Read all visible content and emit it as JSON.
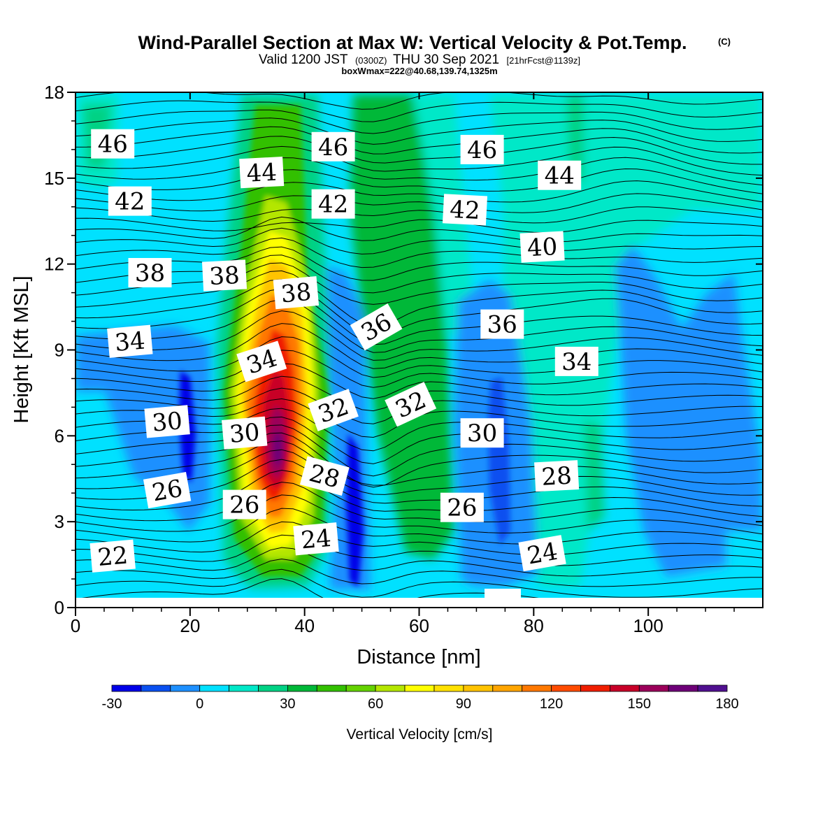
{
  "header": {
    "title": "Wind-Parallel Section at Max W: Vertical Velocity & Pot.Temp.",
    "copyright": "(C)",
    "valid_prefix": "Valid 1200 JST",
    "valid_utc": "(0300Z)",
    "valid_date": "THU 30 Sep 2021",
    "forecast_info": "[21hrFcst@1139z]",
    "box_info": "boxWmax=222@40.68,139.74,1325m"
  },
  "chart_data": {
    "type": "heatmap",
    "xlabel": "Distance [nm]",
    "ylabel": "Height [Kft MSL]",
    "xlim": [
      0,
      120
    ],
    "ylim": [
      0,
      18
    ],
    "x_ticks": [
      0,
      20,
      40,
      60,
      80,
      100
    ],
    "y_ticks": [
      0,
      3,
      6,
      9,
      12,
      15,
      18
    ],
    "colorbar": {
      "title": "Vertical Velocity [cm/s]",
      "min": -30,
      "max": 180,
      "step": 10,
      "tick_values": [
        -30,
        0,
        30,
        60,
        90,
        120,
        150,
        180
      ],
      "colors": [
        "#0000e8",
        "#0a50f0",
        "#1e90ff",
        "#00e1ff",
        "#00e8c8",
        "#00d284",
        "#00b838",
        "#32c000",
        "#64d200",
        "#b4e600",
        "#ffff00",
        "#ffe100",
        "#ffc300",
        "#ffa500",
        "#ff7800",
        "#ff4b00",
        "#f01e00",
        "#c80028",
        "#9b005a",
        "#6e0078",
        "#501090"
      ]
    },
    "features": [
      {
        "name": "updraft core",
        "x_center": 36,
        "peak_cm_s": 175,
        "height_kft": [
          1,
          13.5
        ]
      },
      {
        "name": "green updraft band",
        "x_center": 56,
        "peak_cm_s": 40,
        "height_kft": [
          1.5,
          18
        ]
      },
      {
        "name": "downdraft",
        "x_center": 49,
        "min_cm_s": -25,
        "height_kft": [
          0.5,
          11
        ]
      },
      {
        "name": "downdraft",
        "x_center": 74,
        "min_cm_s": -20,
        "height_kft": [
          1.5,
          11
        ]
      },
      {
        "name": "downdraft",
        "x_center": 19,
        "min_cm_s": -25,
        "height_kft": [
          2.5,
          8
        ]
      }
    ],
    "contours": {
      "variable": "Potential Temperature",
      "levels": [
        22,
        24,
        26,
        28,
        30,
        32,
        34,
        36,
        38,
        40,
        42,
        44,
        46
      ]
    },
    "contour_labels": [
      {
        "text": "46",
        "x": 6.5,
        "y": 16.2,
        "rot": 0
      },
      {
        "text": "46",
        "x": 45,
        "y": 16.1,
        "rot": 0
      },
      {
        "text": "46",
        "x": 71,
        "y": 16.0,
        "rot": 0
      },
      {
        "text": "44",
        "x": 32.5,
        "y": 15.2,
        "rot": -3
      },
      {
        "text": "44",
        "x": 84.5,
        "y": 15.1,
        "rot": 0
      },
      {
        "text": "42",
        "x": 9.5,
        "y": 14.2,
        "rot": 0
      },
      {
        "text": "42",
        "x": 45,
        "y": 14.1,
        "rot": 0
      },
      {
        "text": "42",
        "x": 68,
        "y": 13.9,
        "rot": 3
      },
      {
        "text": "40",
        "x": 81.5,
        "y": 12.6,
        "rot": -3
      },
      {
        "text": "38",
        "x": 13,
        "y": 11.7,
        "rot": 0
      },
      {
        "text": "38",
        "x": 26,
        "y": 11.6,
        "rot": -3
      },
      {
        "text": "38",
        "x": 38.5,
        "y": 11.0,
        "rot": -5
      },
      {
        "text": "36",
        "x": 52.5,
        "y": 9.8,
        "rot": -30
      },
      {
        "text": "36",
        "x": 74.5,
        "y": 9.9,
        "rot": 0
      },
      {
        "text": "34",
        "x": 9.5,
        "y": 9.3,
        "rot": -5
      },
      {
        "text": "34",
        "x": 32.5,
        "y": 8.6,
        "rot": -18
      },
      {
        "text": "34",
        "x": 87.5,
        "y": 8.6,
        "rot": 0
      },
      {
        "text": "32",
        "x": 45,
        "y": 6.9,
        "rot": -20
      },
      {
        "text": "32",
        "x": 58.5,
        "y": 7.1,
        "rot": -25
      },
      {
        "text": "30",
        "x": 16,
        "y": 6.5,
        "rot": -5
      },
      {
        "text": "30",
        "x": 29.5,
        "y": 6.1,
        "rot": -5
      },
      {
        "text": "30",
        "x": 71,
        "y": 6.1,
        "rot": 0
      },
      {
        "text": "28",
        "x": 43.5,
        "y": 4.6,
        "rot": 15
      },
      {
        "text": "28",
        "x": 84,
        "y": 4.6,
        "rot": -3
      },
      {
        "text": "26",
        "x": 16,
        "y": 4.1,
        "rot": -10
      },
      {
        "text": "26",
        "x": 29.5,
        "y": 3.6,
        "rot": 0
      },
      {
        "text": "26",
        "x": 67.5,
        "y": 3.5,
        "rot": 0
      },
      {
        "text": "24",
        "x": 42,
        "y": 2.4,
        "rot": -5
      },
      {
        "text": "24",
        "x": 81.5,
        "y": 1.9,
        "rot": -10
      },
      {
        "text": "22",
        "x": 6.5,
        "y": 1.8,
        "rot": -5
      }
    ]
  }
}
